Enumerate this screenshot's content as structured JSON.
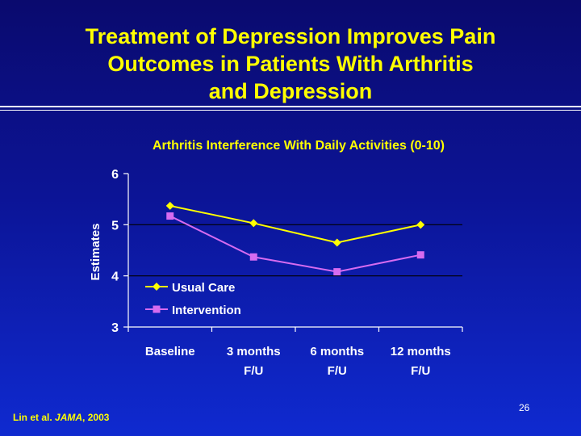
{
  "slide": {
    "title_lines": [
      "Treatment of Depression Improves Pain",
      "Outcomes in Patients With Arthritis",
      "and Depression"
    ],
    "citation_authors": "Lin et al.",
    "citation_journal": "JAMA",
    "citation_year": ", 2003",
    "slide_number": "26"
  },
  "chart_data": {
    "type": "line",
    "title": "Arthritis Interference With Daily Activities (0-10)",
    "ylabel": "Estimates",
    "xlabel": "",
    "categories": [
      [
        "Baseline"
      ],
      [
        "3 months",
        "F/U"
      ],
      [
        "6 months",
        "F/U"
      ],
      [
        "12 months",
        "F/U"
      ]
    ],
    "ylim": [
      3,
      6
    ],
    "yticks": [
      3,
      4,
      5,
      6
    ],
    "grid": "horizontal at 4 and 5",
    "legend_position": "lower-left",
    "series": [
      {
        "name": "Usual Care",
        "values": [
          5.37,
          5.03,
          4.65,
          5.0
        ],
        "color": "#ffff00",
        "marker": "diamond"
      },
      {
        "name": "Intervention",
        "values": [
          5.17,
          4.37,
          4.08,
          4.41
        ],
        "color": "#d66bf0",
        "marker": "square"
      }
    ],
    "axis_color": "#ffffff",
    "gridline_color": "#000000"
  }
}
